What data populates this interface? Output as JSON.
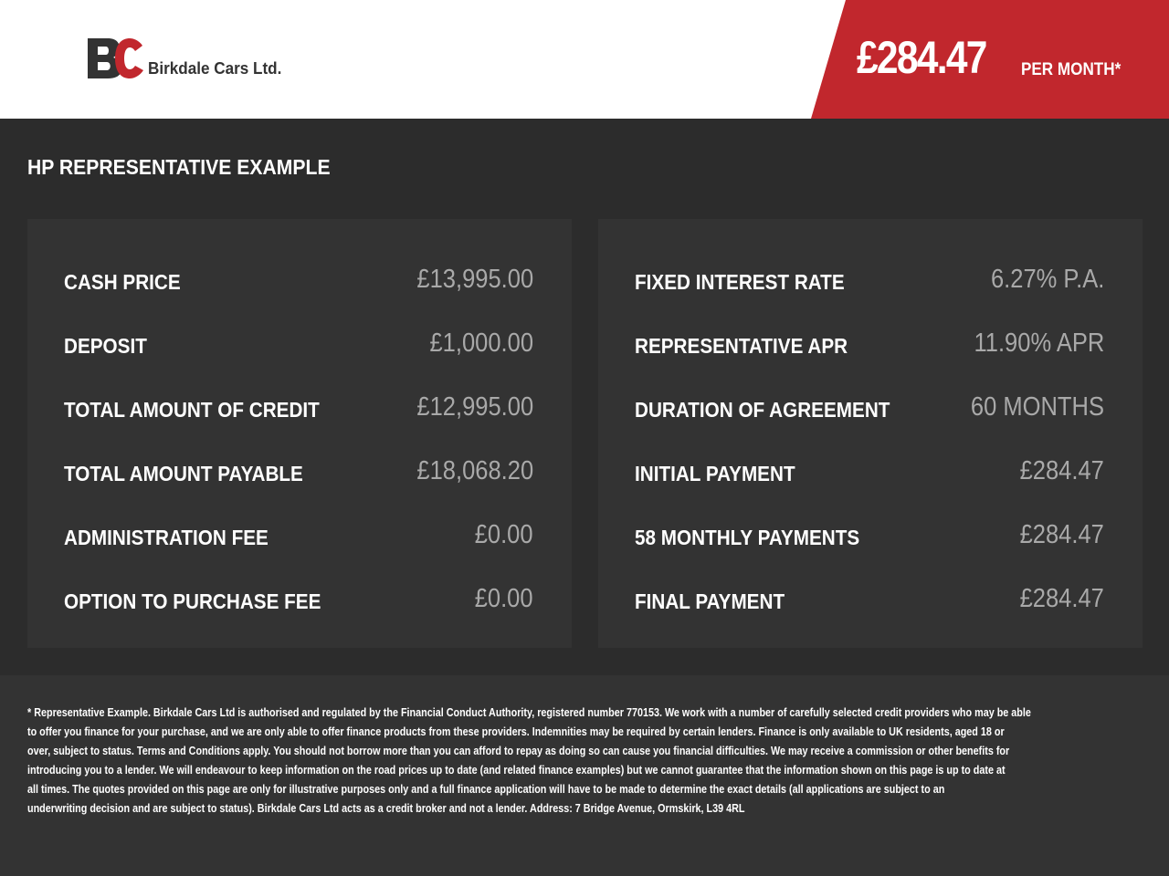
{
  "header": {
    "brand": "Birkdale Cars Ltd.",
    "logo_letters": "BC",
    "monthly_price": "£284.47",
    "per_month_label": "PER MONTH*",
    "colors": {
      "accent": "#c1272d",
      "dark": "#2c2c2c",
      "panel": "#333333"
    }
  },
  "section_title": "HP REPRESENTATIVE EXAMPLE",
  "left_panel": [
    {
      "label": "CASH PRICE",
      "value": "£13,995.00"
    },
    {
      "label": "DEPOSIT",
      "value": "£1,000.00"
    },
    {
      "label": "TOTAL AMOUNT OF CREDIT",
      "value": "£12,995.00"
    },
    {
      "label": "TOTAL AMOUNT PAYABLE",
      "value": "£18,068.20"
    },
    {
      "label": "ADMINISTRATION FEE",
      "value": "£0.00"
    },
    {
      "label": "OPTION TO PURCHASE FEE",
      "value": "£0.00"
    }
  ],
  "right_panel": [
    {
      "label": "FIXED INTEREST RATE",
      "value": "6.27% P.A."
    },
    {
      "label": "REPRESENTATIVE APR",
      "value": "11.90% APR"
    },
    {
      "label": "DURATION OF AGREEMENT",
      "value": "60 MONTHS"
    },
    {
      "label": "INITIAL PAYMENT",
      "value": "£284.47"
    },
    {
      "label": "58 MONTHLY PAYMENTS",
      "value": "£284.47"
    },
    {
      "label": "FINAL PAYMENT",
      "value": "£284.47"
    }
  ],
  "disclaimer_lines": [
    "* Representative Example. Birkdale Cars Ltd is authorised and regulated by the Financial Conduct Authority, registered number 770153. We work with a number of carefully selected credit providers who may be able",
    "to offer you finance for your purchase, and we are only able to offer finance products from these providers. Indemnities may be required by certain lenders. Finance is only available to UK residents, aged 18 or",
    "over, subject to status. Terms and Conditions apply. You should not borrow more than you can afford to repay as doing so can cause you financial difficulties. We may receive a commission or other benefits for",
    "introducing you to a lender. We will endeavour to keep information on the road prices up to date (and related finance examples) but we cannot guarantee that the information shown on this page is up to date at",
    "all times. The quotes provided on this page are only for illustrative purposes only and a full finance application will have to be made to determine the exact details (all applications are subject to an",
    "underwriting decision and are subject to status). Birkdale Cars Ltd acts as a credit broker and not a lender. Address: 7 Bridge Avenue, Ormskirk, L39 4RL"
  ]
}
